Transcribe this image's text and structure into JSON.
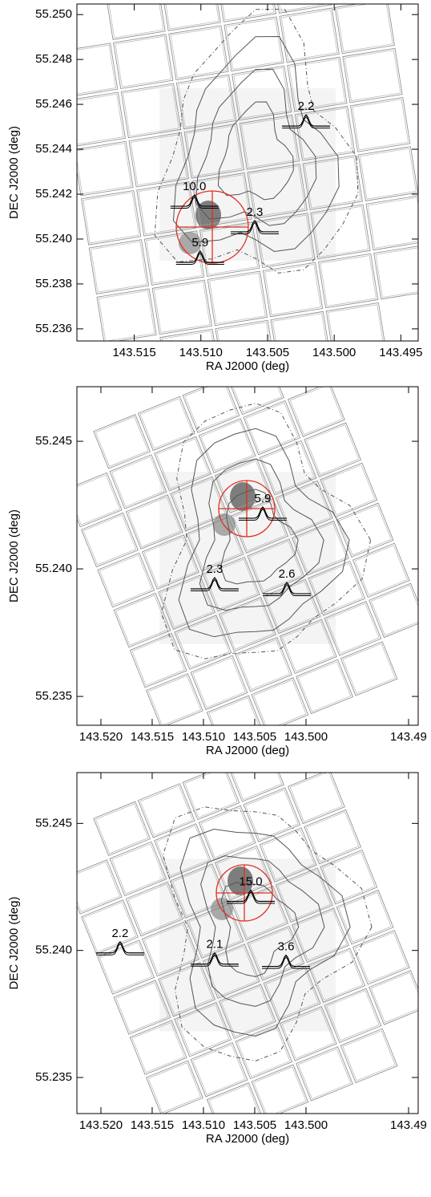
{
  "chart_data": [
    {
      "type": "contour",
      "xlabel": "RA J2000 (deg)",
      "ylabel": "DEC J2000 (deg)",
      "xlim": [
        143.5193,
        143.4937
      ],
      "ylim": [
        55.23546,
        55.25047
      ],
      "xticks": [
        143.515,
        {
          "value": 143.51,
          "label": "143.510"
        },
        143.505,
        {
          "value": 143.5,
          "label": "143.500"
        },
        143.495
      ],
      "yticks": [
        55.236,
        55.238,
        {
          "value": 55.24,
          "label": "55.240"
        },
        55.242,
        55.244,
        55.246,
        55.248,
        {
          "value": 55.25,
          "label": "55.250"
        }
      ],
      "annotations": [
        {
          "text": "10.0",
          "x": 143.51048,
          "y": 55.24232
        },
        {
          "text": "5.9",
          "x": 143.51006,
          "y": 55.23982
        },
        {
          "text": "2.3",
          "x": 143.50596,
          "y": 55.24118
        },
        {
          "text": "2.2",
          "x": 143.50211,
          "y": 55.24589
        }
      ]
    },
    {
      "type": "contour",
      "xlabel": "RA J2000 (deg)",
      "ylabel": "DEC J2000 (deg)",
      "xlim": [
        143.52234,
        143.48906
      ],
      "ylim": [
        55.23387,
        55.24714
      ],
      "xticks": [
        {
          "value": 143.52,
          "label": "143.520"
        },
        143.515,
        {
          "value": 143.51,
          "label": "143.510"
        },
        143.505,
        {
          "value": 143.5,
          "label": "143.500"
        },
        143.49
      ],
      "yticks": [
        55.235,
        {
          "value": 55.24,
          "label": "55.240"
        },
        55.245
      ],
      "annotations": [
        {
          "text": "5.9",
          "x": 143.50422,
          "y": 55.24274
        },
        {
          "text": "2.3",
          "x": 143.50891,
          "y": 55.23997
        },
        {
          "text": "2.6",
          "x": 143.50187,
          "y": 55.23978
        }
      ]
    },
    {
      "type": "contour",
      "xlabel": "RA J2000 (deg)",
      "ylabel": "DEC J2000 (deg)",
      "xlim": [
        143.52234,
        143.48906
      ],
      "ylim": [
        55.23358,
        55.247
      ],
      "xticks": [
        {
          "value": 143.52,
          "label": "143.520"
        },
        143.515,
        {
          "value": 143.51,
          "label": "143.510"
        },
        143.505,
        {
          "value": 143.5,
          "label": "143.500"
        },
        143.49
      ],
      "yticks": [
        55.235,
        {
          "value": 55.24,
          "label": "55.240"
        },
        55.245
      ],
      "annotations": [
        {
          "text": "15.0",
          "x": 143.50539,
          "y": 55.24269
        },
        {
          "text": "2.1",
          "x": 143.50891,
          "y": 55.24022
        },
        {
          "text": "3.6",
          "x": 143.50195,
          "y": 55.24013
        },
        {
          "text": "2.2",
          "x": 143.51813,
          "y": 55.24066
        }
      ]
    }
  ]
}
